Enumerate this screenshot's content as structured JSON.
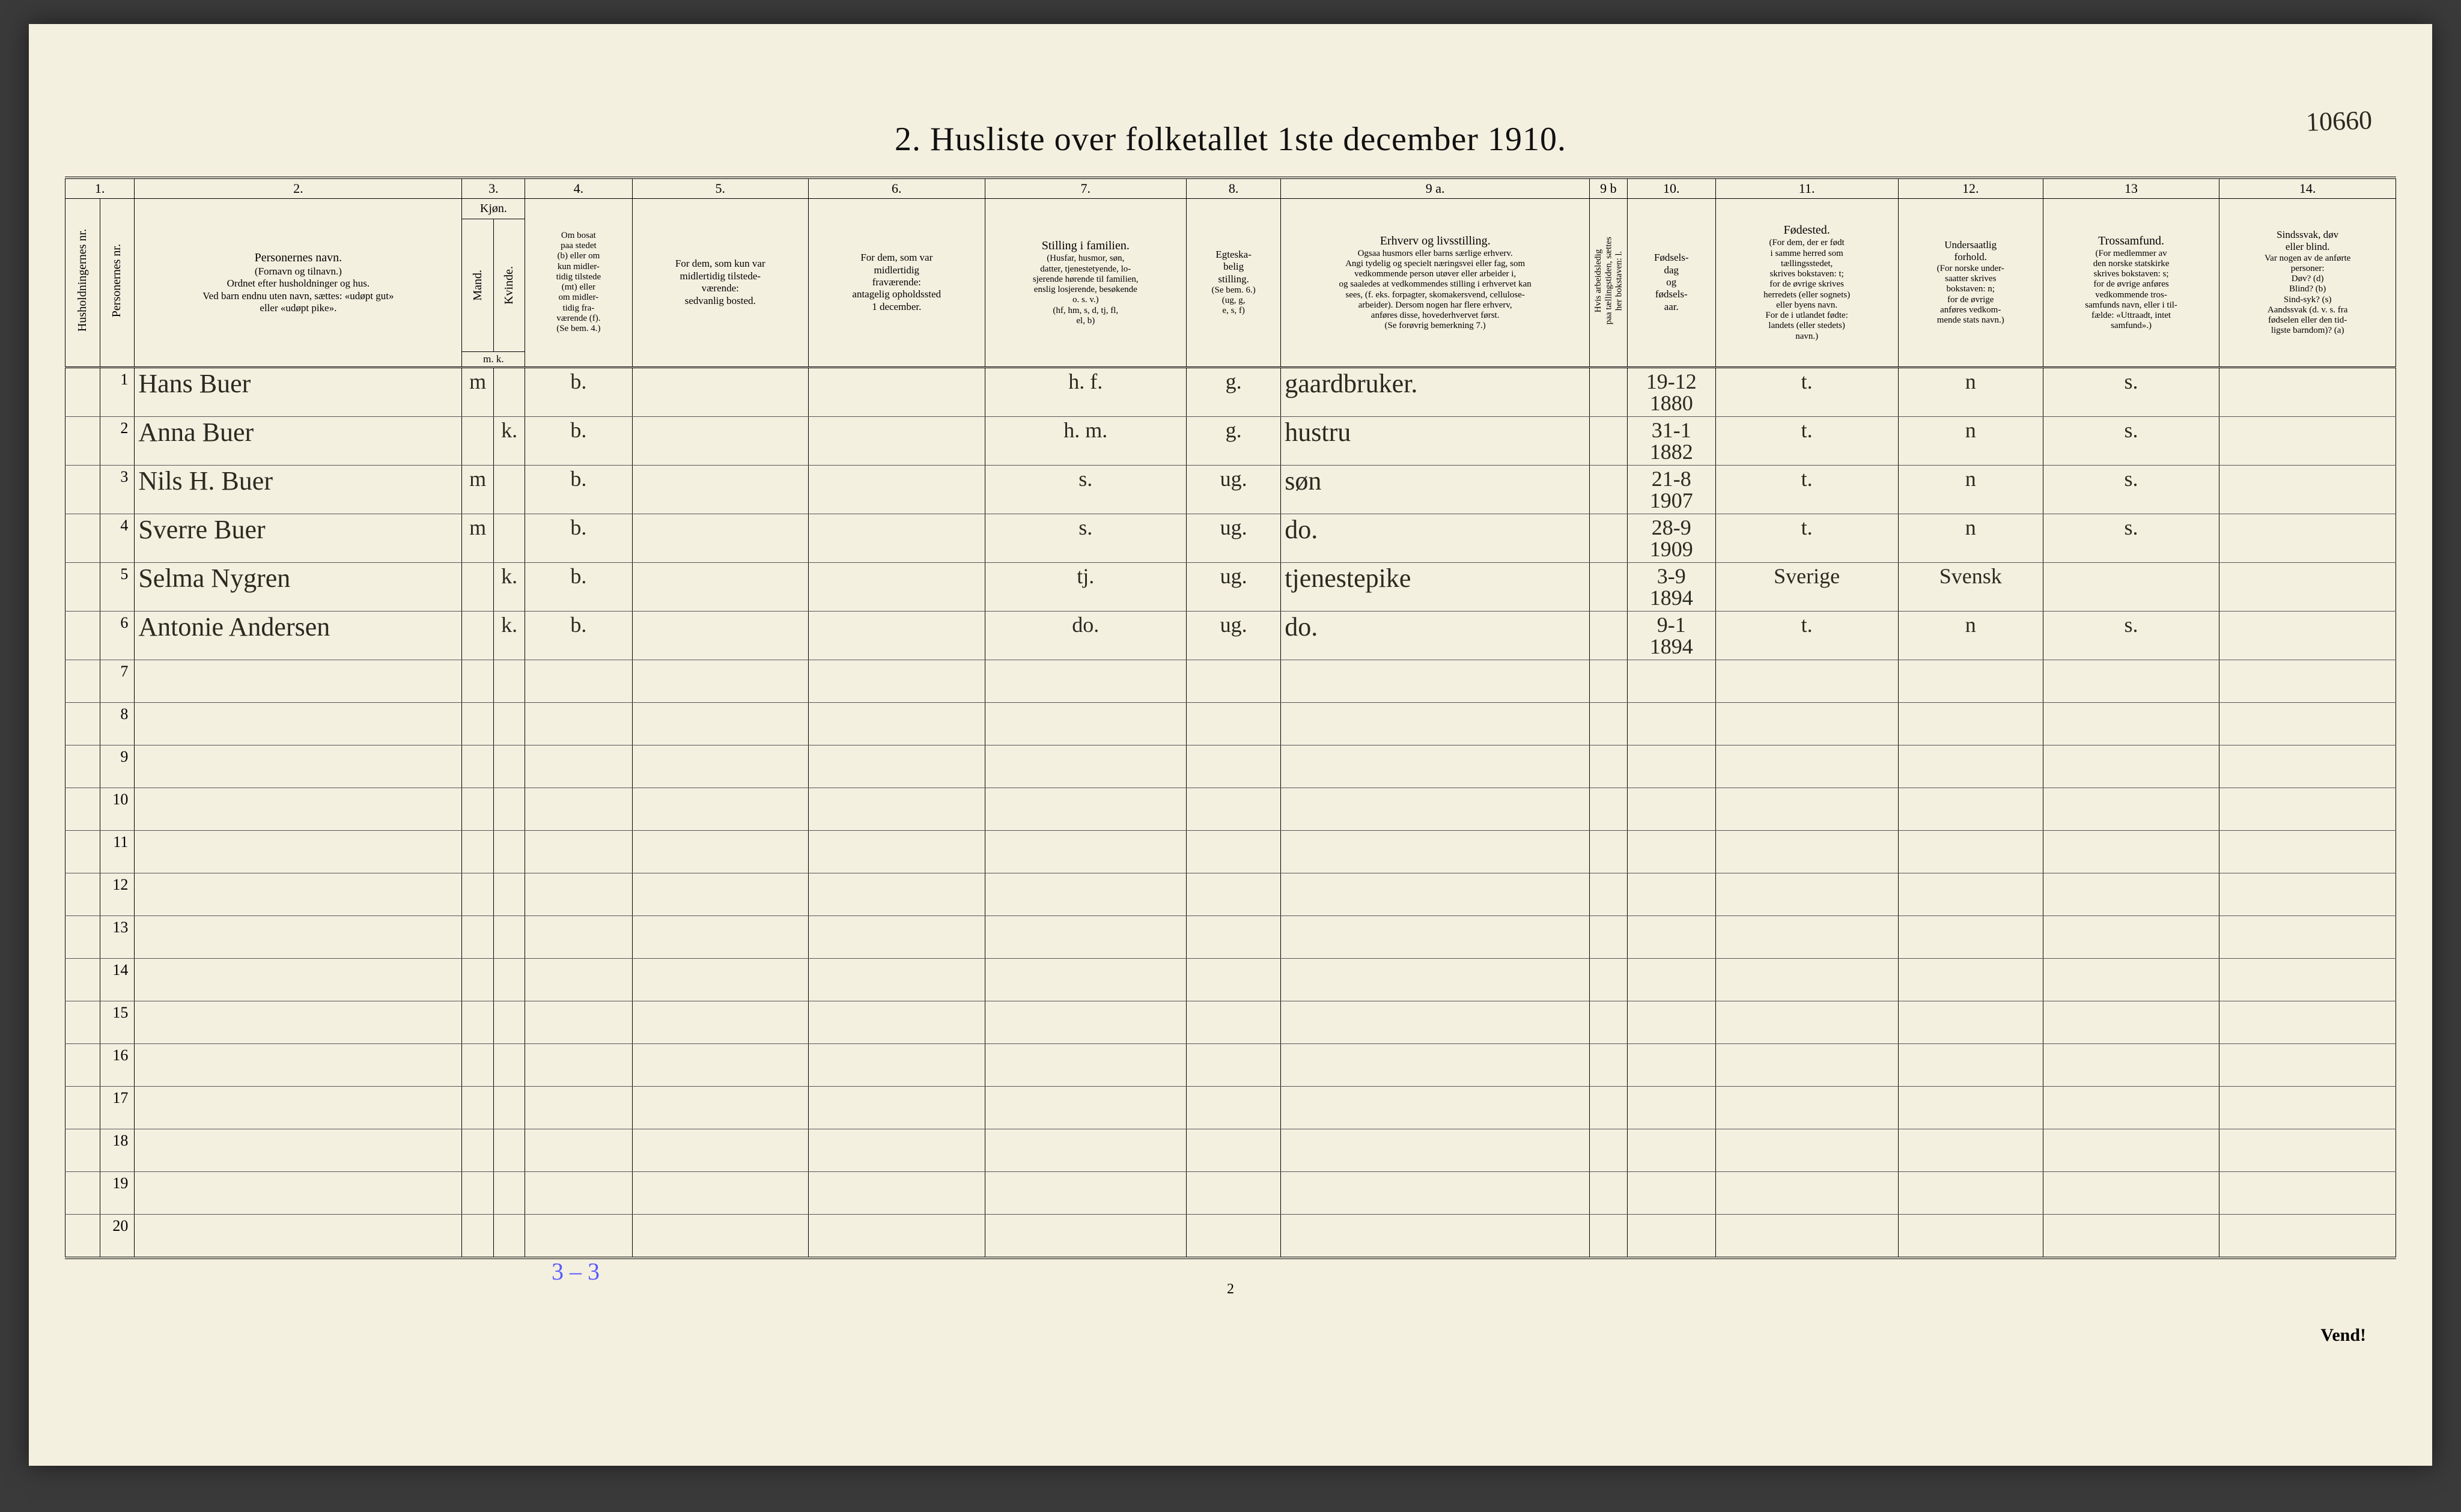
{
  "title": "2.  Husliste over folketallet 1ste december 1910.",
  "top_right_annotation": "10660",
  "footer_tally": "3 – 3",
  "page_number": "2",
  "vend": "Vend!",
  "col_numbers": [
    "1.",
    "2.",
    "3.",
    "4.",
    "5.",
    "6.",
    "7.",
    "8.",
    "9 a.",
    "9 b",
    "10.",
    "11.",
    "12.",
    "13",
    "14."
  ],
  "headers": {
    "c1a": "Husholdningernes nr.",
    "c1b": "Personernes nr.",
    "c2_title": "Personernes navn.",
    "c2_sub": "(Fornavn og tilnavn.)\nOrdnet efter husholdninger og hus.\nVed barn endnu uten navn, sættes: «udøpt gut»\neller «udøpt pike».",
    "c3_title": "Kjøn.",
    "c3a": "Mand.",
    "c3b": "Kvinde.",
    "c3_foot": "m.  k.",
    "c4_title": "Om bosat\npaa stedet\n(b) eller om\nkun midler-\ntidig tilstede\n(mt) eller\nom midler-\ntidig fra-\nværende (f).\n(Se bem. 4.)",
    "c5": "For dem, som kun var\nmidlertidig tilstede-\nværende:\nsedvanlig bosted.",
    "c6": "For dem, som var\nmidlertidig\nfraværende:\nantagelig opholdssted\n1 december.",
    "c7_title": "Stilling i familien.",
    "c7_sub": "(Husfar, husmor, søn,\ndatter, tjenestetyende, lo-\nsjerende hørende til familien,\nenslig losjerende, besøkende\no. s. v.)\n(hf, hm, s, d, tj, fl,\nel, b)",
    "c8_title": "Egteska-\nbelig\nstilling.",
    "c8_sub": "(Se bem. 6.)\n(ug, g,\ne, s, f)",
    "c9a_title": "Erhverv og livsstilling.",
    "c9a_sub": "Ogsaa husmors eller barns særlige erhverv.\nAngi tydelig og specielt næringsvei eller fag, som\nvedkommende person utøver eller arbeider i,\nog saaledes at vedkommendes stilling i erhvervet kan\nsees, (f. eks. forpagter, skomakersvend, cellulose-\narbeider). Dersom nogen har flere erhverv,\nanføres disse, hovederhvervet først.\n(Se forøvrig bemerkning 7.)",
    "c9b": "Hvis arbeidsledig\npaa tællingstiden, sættes\nher bokstaven: l.",
    "c10": "Fødsels-\ndag\nog\nfødsels-\naar.",
    "c11_title": "Fødested.",
    "c11_sub": "(For dem, der er født\ni samme herred som\ntællingsstedet,\nskrives bokstaven: t;\nfor de øvrige skrives\nherredets (eller sognets)\neller byens navn.\nFor de i utlandet fødte:\nlandets (eller stedets)\nnavn.)",
    "c12_title": "Undersaatlig\nforhold.",
    "c12_sub": "(For norske under-\nsaatter skrives\nbokstaven: n;\nfor de øvrige\nanføres vedkom-\nmende stats navn.)",
    "c13_title": "Trossamfund.",
    "c13_sub": "(For medlemmer av\nden norske statskirke\nskrives bokstaven: s;\nfor de øvrige anføres\nvedkommende tros-\nsamfunds navn, eller i til-\nfælde: «Uttraadt, intet\nsamfund».)",
    "c14_title": "Sindssvak, døv\neller blind.",
    "c14_sub": "Var nogen av de anførte\npersoner:\nDøv?          (d)\nBlind?        (b)\nSind-syk?  (s)\nAandssvak (d. v. s. fra\nfødselen eller den tid-\nligste barndom)?  (a)"
  },
  "rows": [
    {
      "n": "1",
      "name": "Hans Buer",
      "m": "m",
      "k": "",
      "res": "b.",
      "c5": "",
      "c6": "",
      "fam": "h. f.",
      "eg": "g.",
      "erhv": "gaardbruker.",
      "c9b": "",
      "dob": "19-12\n1880",
      "fs": "t.",
      "us": "n",
      "ts": "s.",
      "c14": ""
    },
    {
      "n": "2",
      "name": "Anna Buer",
      "m": "",
      "k": "k.",
      "res": "b.",
      "c5": "",
      "c6": "",
      "fam": "h. m.",
      "eg": "g.",
      "erhv": "hustru",
      "c9b": "",
      "dob": "31-1\n1882",
      "fs": "t.",
      "us": "n",
      "ts": "s.",
      "c14": ""
    },
    {
      "n": "3",
      "name": "Nils H. Buer",
      "m": "m",
      "k": "",
      "res": "b.",
      "c5": "",
      "c6": "",
      "fam": "s.",
      "eg": "ug.",
      "erhv": "søn",
      "c9b": "",
      "dob": "21-8\n1907",
      "fs": "t.",
      "us": "n",
      "ts": "s.",
      "c14": ""
    },
    {
      "n": "4",
      "name": "Sverre Buer",
      "m": "m",
      "k": "",
      "res": "b.",
      "c5": "",
      "c6": "",
      "fam": "s.",
      "eg": "ug.",
      "erhv": "do.",
      "c9b": "",
      "dob": "28-9\n1909",
      "fs": "t.",
      "us": "n",
      "ts": "s.",
      "c14": ""
    },
    {
      "n": "5",
      "name": "Selma Nygren",
      "m": "",
      "k": "k.",
      "res": "b.",
      "c5": "",
      "c6": "",
      "fam": "tj.",
      "eg": "ug.",
      "erhv": "tjenestepike",
      "c9b": "",
      "dob": "3-9\n1894",
      "fs": "Sverige",
      "us": "Svensk",
      "ts": "",
      "c14": ""
    },
    {
      "n": "6",
      "name": "Antonie Andersen",
      "m": "",
      "k": "k.",
      "res": "b.",
      "c5": "",
      "c6": "",
      "fam": "do.",
      "eg": "ug.",
      "erhv": "do.",
      "c9b": "",
      "dob": "9-1\n1894",
      "fs": "t.",
      "us": "n",
      "ts": "s.",
      "c14": ""
    },
    {
      "n": "7"
    },
    {
      "n": "8"
    },
    {
      "n": "9"
    },
    {
      "n": "10"
    },
    {
      "n": "11"
    },
    {
      "n": "12"
    },
    {
      "n": "13"
    },
    {
      "n": "14"
    },
    {
      "n": "15"
    },
    {
      "n": "16"
    },
    {
      "n": "17"
    },
    {
      "n": "18"
    },
    {
      "n": "19"
    },
    {
      "n": "20"
    }
  ]
}
